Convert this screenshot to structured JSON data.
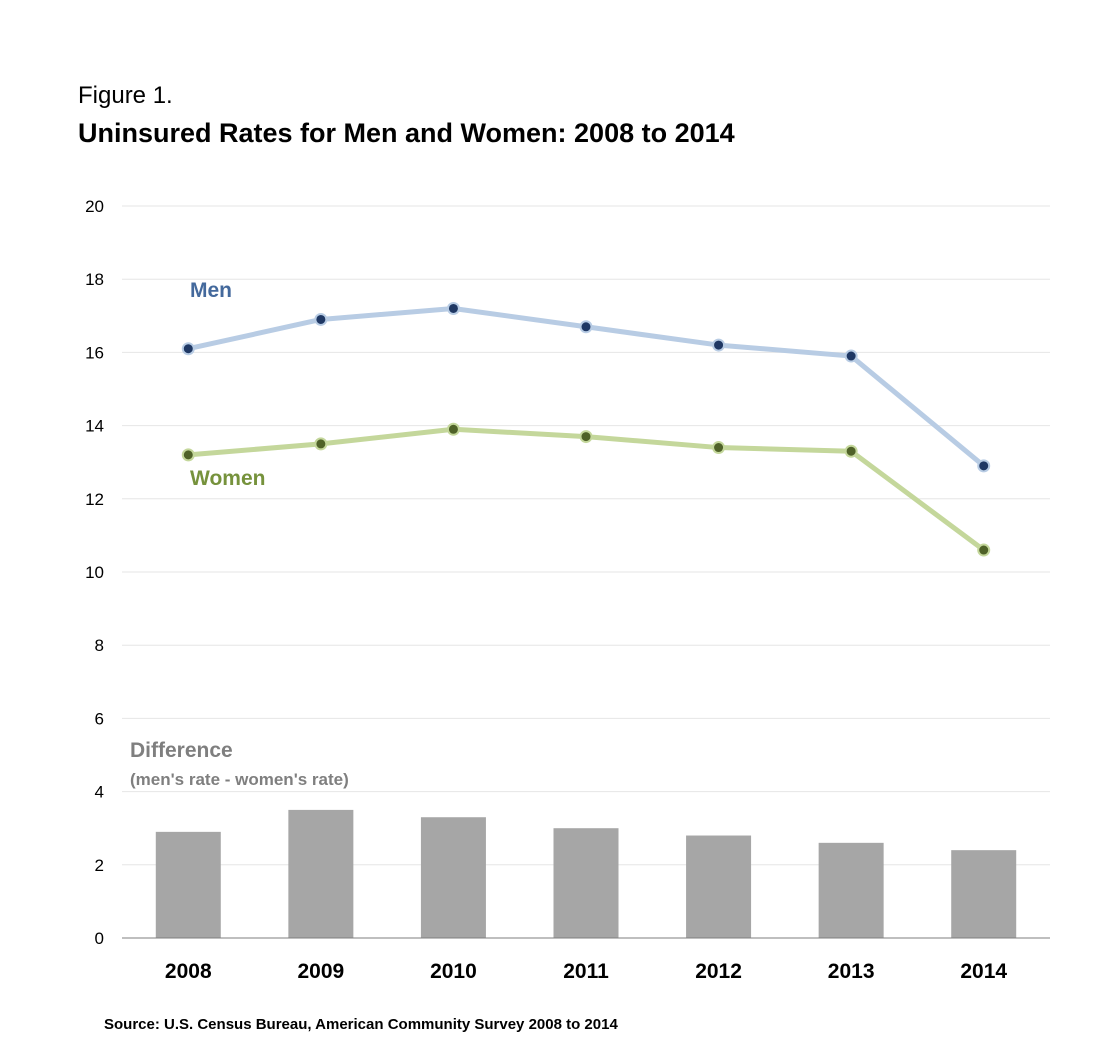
{
  "figure_label": "Figure 1.",
  "title": "Uninsured Rates for Men and Women:  2008 to 2014",
  "source": "Source: U.S. Census Bureau, American Community Survey 2008 to 2014",
  "chart_data": {
    "type": "line",
    "categories": [
      "2008",
      "2009",
      "2010",
      "2011",
      "2012",
      "2013",
      "2014"
    ],
    "ylim": [
      0,
      20
    ],
    "yticks": [
      0,
      2,
      4,
      6,
      8,
      10,
      12,
      14,
      16,
      18,
      20
    ],
    "grid": true,
    "series": [
      {
        "name": "Men",
        "type": "line",
        "values": [
          16.1,
          16.9,
          17.2,
          16.7,
          16.2,
          15.9,
          12.9
        ],
        "line_color": "#b8cce4",
        "marker_color": "#1f3864",
        "label_color": "#44699c"
      },
      {
        "name": "Women",
        "type": "line",
        "values": [
          13.2,
          13.5,
          13.9,
          13.7,
          13.4,
          13.3,
          10.6
        ],
        "line_color": "#c4d79b",
        "marker_color": "#4f6228",
        "label_color": "#76923c"
      },
      {
        "name": "Difference",
        "type": "bar",
        "values": [
          2.9,
          3.5,
          3.3,
          3.0,
          2.8,
          2.6,
          2.4
        ],
        "color": "#a6a6a6"
      }
    ],
    "annotations": {
      "difference_title": "Difference",
      "difference_subtitle": "(men's rate - women's rate)"
    }
  }
}
